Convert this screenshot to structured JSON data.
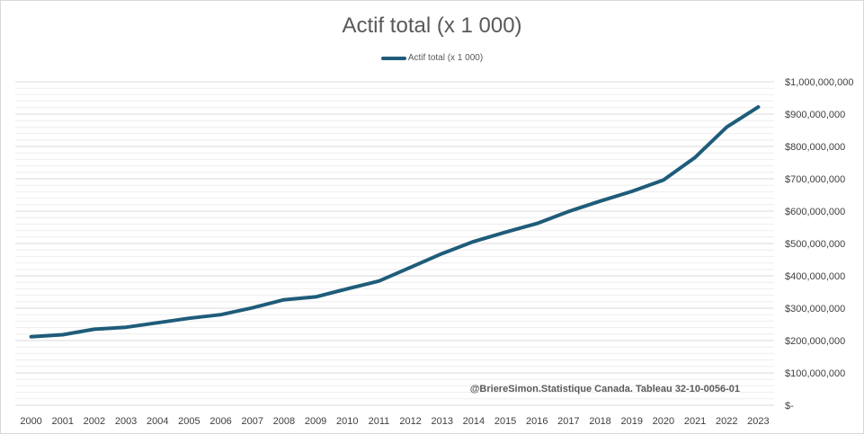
{
  "chart_data": {
    "type": "line",
    "title": "Actif total (x 1 000)",
    "xlabel": "",
    "ylabel": "",
    "x": [
      "2000",
      "2001",
      "2002",
      "2003",
      "2004",
      "2005",
      "2006",
      "2007",
      "2008",
      "2009",
      "2010",
      "2011",
      "2012",
      "2013",
      "2014",
      "2015",
      "2016",
      "2017",
      "2018",
      "2019",
      "2020",
      "2021",
      "2022",
      "2023"
    ],
    "series": [
      {
        "name": "Actif total (x 1 000)",
        "color": "#1f5c7a",
        "values": [
          212000000,
          218000000,
          235000000,
          241000000,
          255000000,
          269000000,
          280000000,
          301000000,
          326000000,
          335000000,
          360000000,
          384000000,
          426000000,
          469000000,
          506000000,
          535000000,
          562000000,
          599000000,
          631000000,
          661000000,
          696000000,
          766000000,
          860000000,
          922000000
        ]
      }
    ],
    "ylim": [
      0,
      1000000000
    ],
    "yticks": [
      {
        "value": 0,
        "label": "$-"
      },
      {
        "value": 100000000,
        "label": "$100,000,000"
      },
      {
        "value": 200000000,
        "label": "$200,000,000"
      },
      {
        "value": 300000000,
        "label": "$300,000,000"
      },
      {
        "value": 400000000,
        "label": "$400,000,000"
      },
      {
        "value": 500000000,
        "label": "$500,000,000"
      },
      {
        "value": 600000000,
        "label": "$600,000,000"
      },
      {
        "value": 700000000,
        "label": "$700,000,000"
      },
      {
        "value": 800000000,
        "label": "$800,000,000"
      },
      {
        "value": 900000000,
        "label": "$900,000,000"
      },
      {
        "value": 1000000000,
        "label": "$1,000,000,000"
      }
    ],
    "grid": true,
    "minor_grid": true,
    "legend_position": "top-center",
    "y_axis_side": "right",
    "annotation": "@BriereSimon.Statistique Canada. Tableau 32-10-0056-01",
    "colors": {
      "major_grid": "#d9d9d9",
      "minor_grid": "#eeeeee"
    }
  }
}
